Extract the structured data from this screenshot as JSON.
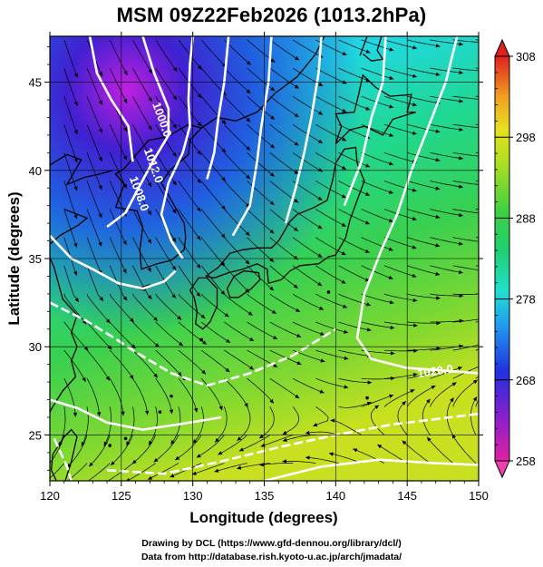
{
  "title": "MSM 09Z22Feb2026 (1013.2hPa)",
  "credits": {
    "line1": "Drawing by DCL (https://www.gfd-dennou.org/library/dcl/)",
    "line2": "Data from http://database.rish.kyoto-u.ac.jp/arch/jmadata/"
  },
  "map": {
    "xlabel": "Longitude (degrees)",
    "ylabel": "Latitude  (degrees)",
    "lon_range": [
      120,
      150
    ],
    "lat_range": [
      22.4,
      47.6
    ],
    "x_ticks": [
      120,
      125,
      130,
      135,
      140,
      145,
      150
    ],
    "y_ticks": [
      25,
      30,
      35,
      40,
      45
    ],
    "grid": true,
    "fill_variable": "temperature (K)",
    "isobar_labels": [
      {
        "text": "1020.0",
        "lon": 147.0,
        "lat": 28.4
      },
      {
        "text": "1000.0",
        "lon": 127.6,
        "lat": 42.8
      },
      {
        "text": "1012.0",
        "lon": 127.0,
        "lat": 40.2
      },
      {
        "text": "1008.0",
        "lon": 126.0,
        "lat": 38.6
      }
    ]
  },
  "colorbar": {
    "min": 258,
    "max": 308,
    "labeled_ticks": [
      308,
      298,
      288,
      278,
      268,
      258
    ],
    "tick_labels": [
      "308",
      "298",
      "288",
      "278",
      "268",
      "258"
    ]
  },
  "colors": {
    "cold": "#cc00cc",
    "cool": "#2040e0",
    "mid": "#20d0c0",
    "warm": "#40d040",
    "hot": "#e0e020",
    "land": "#000000",
    "isobar": "#ffffff"
  }
}
